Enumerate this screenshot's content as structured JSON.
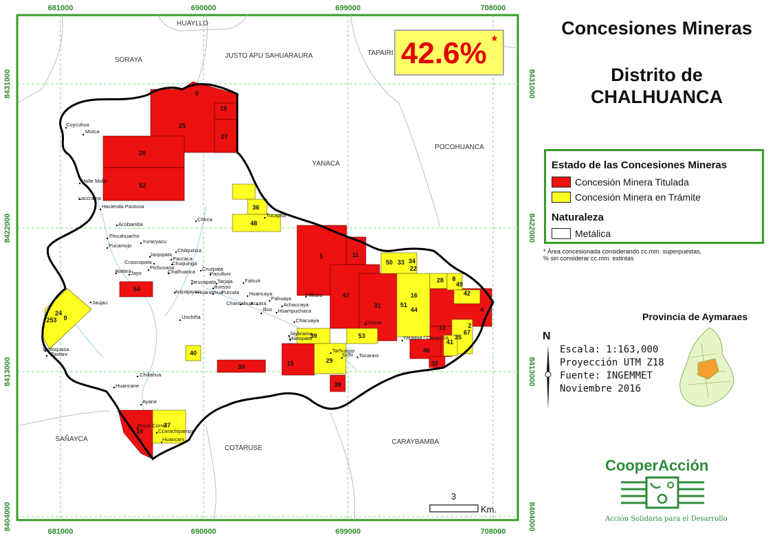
{
  "title": "Concesiones Mineras",
  "subtitle_line1": "Distrito de",
  "subtitle_line2": "CHALHUANCA",
  "percentage": "42.6%",
  "percentage_mark": "*",
  "legend": {
    "heading_state": "Estado de las Concesiones Mineras",
    "titled_label": "Concesión Minera Titulada",
    "pending_label": "Concesión Minera en Trámite",
    "heading_nature": "Naturaleza",
    "metallic_label": "Metálica",
    "colors": {
      "titled": "#ee1111",
      "pending": "#ffff22",
      "metallic": "#ffffff"
    }
  },
  "footnote_1": "* Área concesionada considerando cc.mm. superpuestas,",
  "footnote_2": "% sin considerar cc.mm. extintas",
  "province_title": "Provincia de Aymaraes",
  "north": "N",
  "scale_text": "Escala: 1:163,000",
  "projection_text": "Proyección UTM Z18",
  "source_text": "Fuente: INGEMMET",
  "date_text": "Noviembre 2016",
  "brand": "CooperAcción",
  "tagline": "Acción Solidaria para el Desarrollo",
  "scalebar_value": "3",
  "scalebar_unit": "Km.",
  "coords_x": [
    "681000",
    "690000",
    "699000",
    "708000"
  ],
  "coords_y": [
    "8431000",
    "8422000",
    "8413000",
    "8404000"
  ],
  "districts": [
    "HUAYLLO",
    "SORAYA",
    "JUSTO APU SAHUARAURA",
    "TAPAIRI",
    "YANACA",
    "POCOHUANCA",
    "SAÑAYCA",
    "COTARUSE",
    "CARAYBAMBA"
  ],
  "towns": [
    "Cuycuhua",
    "Mutca",
    "Molle Molle",
    "Laccrama",
    "Hacienda Pautusa",
    "Acobamba",
    "Pincahuacho",
    "Yuracyacu",
    "Pucamojo",
    "Chilquinza",
    "Jasjopata",
    "Paccaca",
    "Chuquinga",
    "Ccascopata",
    "Pichusana",
    "Atalara",
    "Jayo",
    "Chalhuanca",
    "Cruzpata",
    "Paculluni",
    "Tarucapata",
    "Tarjaja",
    "Itunsso",
    "Falsuri",
    "Anjuajayoc",
    "Huaranhua",
    "Purcata",
    "Huancaya",
    "Pahuaya",
    "Chancahua",
    "Accara",
    "Achaccaya",
    "Illco",
    "Huampuchaca",
    "Unchiña",
    "Jaujau",
    "Chacuaya",
    "Jaybrama",
    "Manopata",
    "Tarhuayjo",
    "Sichi",
    "Tocarani",
    "Chonta",
    "Yaragua / Caraucca",
    "Pillkara",
    "Chirca",
    "Tucapita",
    "Molloquasa",
    "Tastani",
    "Chillahua",
    "Huancane",
    "Ayane",
    "Royal Corral",
    "Ccarachipampa",
    "Huancani"
  ],
  "concession_numbers": [
    "0",
    "19",
    "25",
    "27",
    "20",
    "52",
    "36",
    "48",
    "5",
    "11",
    "50",
    "33",
    "34",
    "22",
    "47",
    "31",
    "51",
    "16",
    "44",
    "28",
    "8",
    "49",
    "42",
    "4",
    "54",
    "24",
    "9",
    "253",
    "40",
    "39",
    "53",
    "15",
    "29",
    "30",
    "38",
    "12",
    "2",
    "67",
    "35",
    "41",
    "46",
    "32",
    "10",
    "37"
  ]
}
